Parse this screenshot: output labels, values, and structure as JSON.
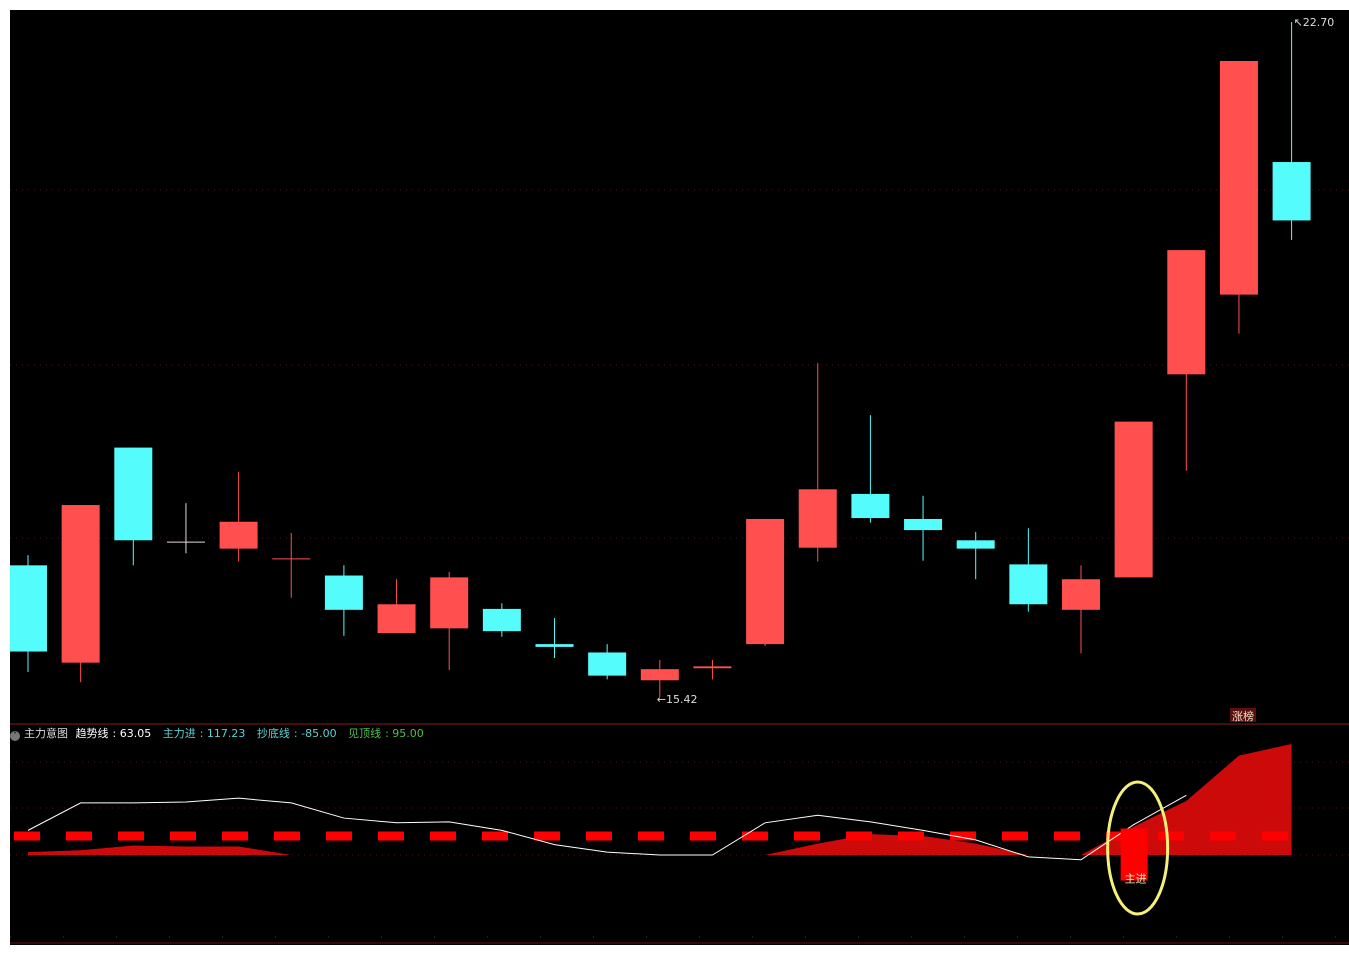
{
  "chart_data": [
    {
      "type": "candlestick",
      "ylim": [
        15.15,
        22.83
      ],
      "grid": true,
      "colors": {
        "up": "#ff4f4f",
        "down": "#54fcfc",
        "background": "#000000",
        "grid": "#5a1010"
      },
      "candles": [
        {
          "o": 16.84,
          "h": 16.95,
          "l": 15.69,
          "c": 15.91
        },
        {
          "o": 15.79,
          "h": 17.49,
          "l": 15.58,
          "c": 17.49
        },
        {
          "o": 18.11,
          "h": 18.11,
          "l": 16.84,
          "c": 17.11
        },
        {
          "o": 17.09,
          "h": 17.51,
          "l": 16.97,
          "c": 17.09
        },
        {
          "o": 17.02,
          "h": 17.85,
          "l": 16.88,
          "c": 17.31
        },
        {
          "o": 16.91,
          "h": 17.19,
          "l": 16.49,
          "c": 16.91
        },
        {
          "o": 16.73,
          "h": 16.84,
          "l": 16.08,
          "c": 16.36
        },
        {
          "o": 16.11,
          "h": 16.69,
          "l": 16.11,
          "c": 16.42
        },
        {
          "o": 16.16,
          "h": 16.77,
          "l": 15.71,
          "c": 16.71
        },
        {
          "o": 16.37,
          "h": 16.43,
          "l": 16.07,
          "c": 16.13
        },
        {
          "o": 15.99,
          "h": 16.27,
          "l": 15.84,
          "c": 15.96
        },
        {
          "o": 15.9,
          "h": 15.99,
          "l": 15.61,
          "c": 15.65
        },
        {
          "o": 15.6,
          "h": 15.82,
          "l": 15.42,
          "c": 15.72
        },
        {
          "o": 15.72,
          "h": 15.82,
          "l": 15.61,
          "c": 15.74
        },
        {
          "o": 15.99,
          "h": 17.34,
          "l": 15.97,
          "c": 17.34
        },
        {
          "o": 17.03,
          "h": 19.02,
          "l": 16.88,
          "c": 17.66
        },
        {
          "o": 17.61,
          "h": 18.46,
          "l": 17.3,
          "c": 17.35
        },
        {
          "o": 17.34,
          "h": 17.59,
          "l": 16.89,
          "c": 17.22
        },
        {
          "o": 17.11,
          "h": 17.2,
          "l": 16.69,
          "c": 17.02
        },
        {
          "o": 16.85,
          "h": 17.24,
          "l": 16.34,
          "c": 16.42
        },
        {
          "o": 16.36,
          "h": 16.84,
          "l": 15.89,
          "c": 16.69
        },
        {
          "o": 16.71,
          "h": 18.39,
          "l": 16.71,
          "c": 18.39
        },
        {
          "o": 18.9,
          "h": 20.24,
          "l": 17.86,
          "c": 20.24
        },
        {
          "o": 19.76,
          "h": 22.28,
          "l": 19.34,
          "c": 22.28
        },
        {
          "o": 21.19,
          "h": 22.7,
          "l": 20.35,
          "c": 20.56
        }
      ],
      "annotations": {
        "high_label": "22.70",
        "low_label": "15.42",
        "tag_label": "涨榜"
      }
    },
    {
      "type": "line+area",
      "ylim": [
        -93,
        138
      ],
      "title": "主力意图",
      "legend": [
        {
          "name": "趋势线",
          "value": "63.05",
          "color": "#ffffff"
        },
        {
          "name": "主力进",
          "value": "117.23",
          "color": "#5fd0d0"
        },
        {
          "name": "抄底线",
          "value": "-85.00",
          "color": "#5fd0d0"
        },
        {
          "name": "见顶线",
          "value": "95.00",
          "color": "#4fbf4f"
        }
      ],
      "trend_line": [
        26,
        55,
        55,
        56,
        60,
        55,
        39,
        34,
        35,
        26,
        11,
        3,
        0,
        0,
        34,
        42,
        35,
        26,
        16,
        -2,
        -5,
        32,
        63.05,
        null,
        null
      ],
      "main_force_area": [
        3,
        5,
        10,
        9,
        9,
        0,
        0,
        0,
        0,
        0,
        0,
        0,
        0,
        0,
        0,
        12,
        22,
        20,
        12,
        0,
        0,
        30,
        57,
        105,
        117.23
      ],
      "signal_level": 20,
      "signal_bar": {
        "index": 21,
        "top": 28,
        "bottom": -27,
        "label": "主进"
      },
      "colors": {
        "area": "#cc0a0a",
        "signal": "#ff0000",
        "trend": "#ffffff",
        "highlight": "#f4f07a"
      }
    }
  ]
}
